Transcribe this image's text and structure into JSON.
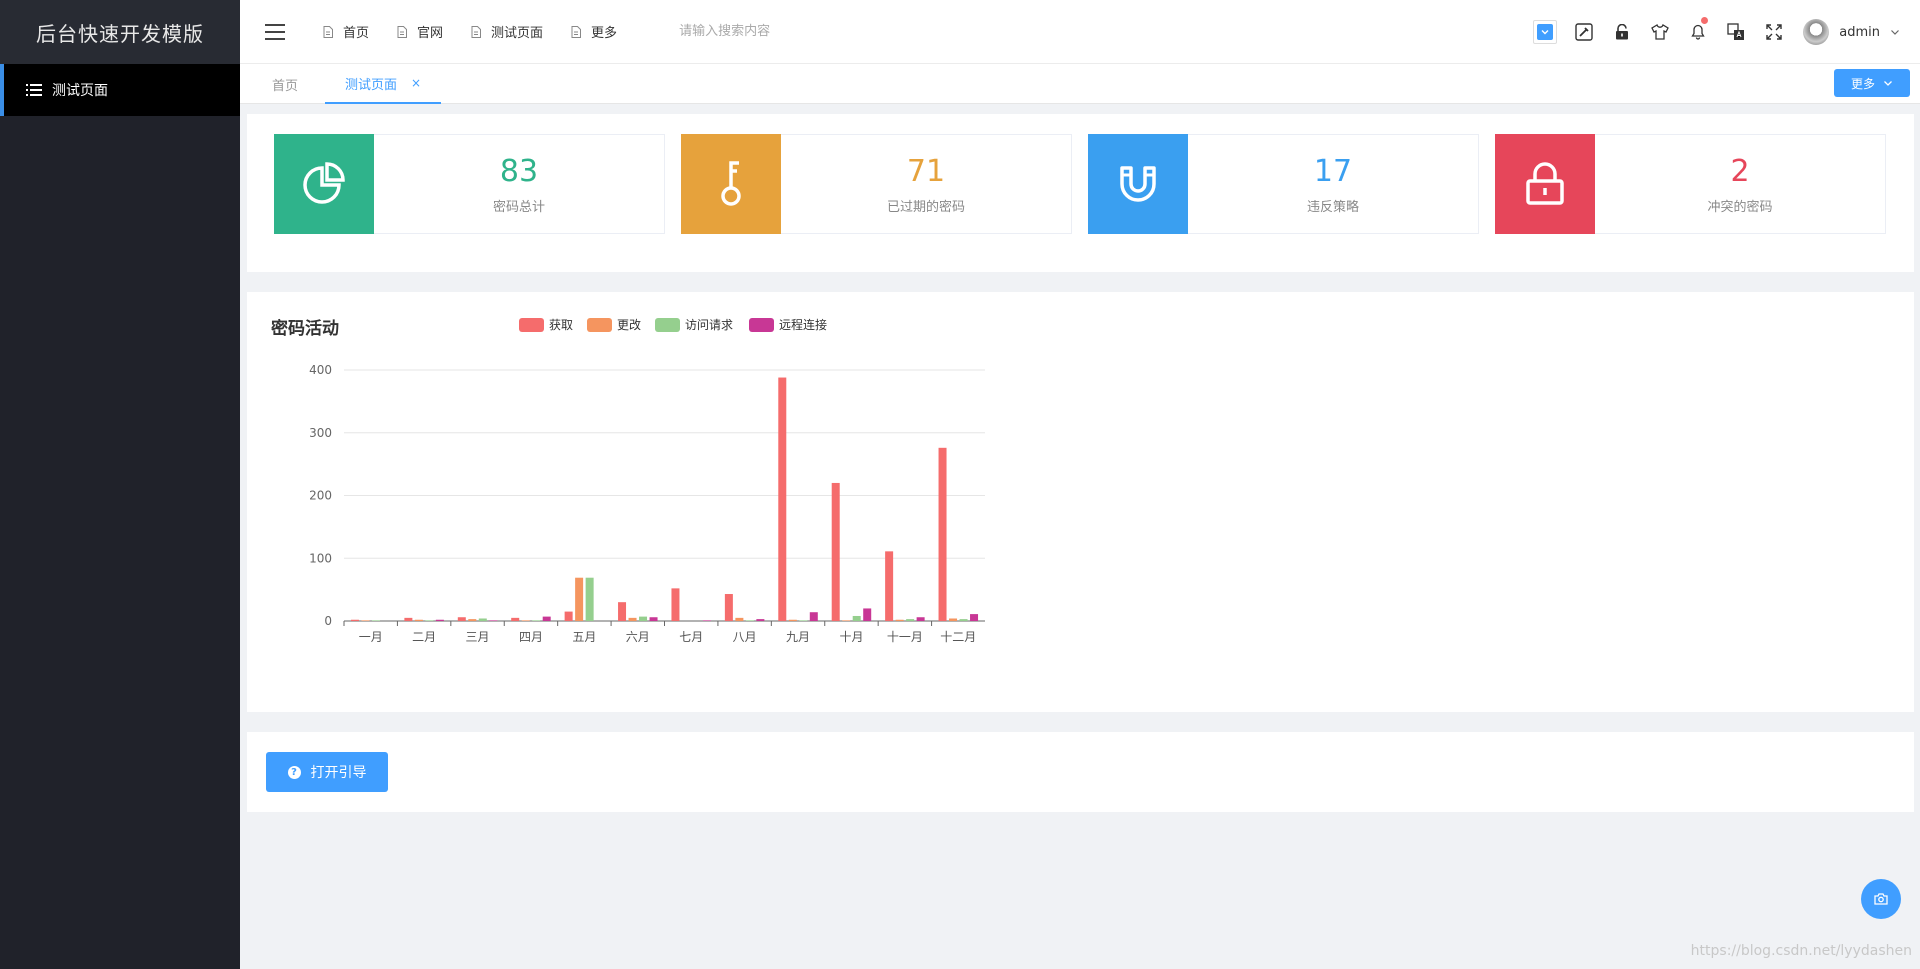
{
  "app": {
    "title": "后台快速开发模版"
  },
  "sidebar": {
    "items": [
      {
        "label": "测试页面",
        "icon": "list-icon"
      }
    ]
  },
  "header": {
    "nav": [
      {
        "label": "首页",
        "icon": "doc-icon"
      },
      {
        "label": "官网",
        "icon": "doc-icon"
      },
      {
        "label": "测试页面",
        "icon": "doc-icon"
      },
      {
        "label": "更多",
        "icon": "doc-icon"
      }
    ],
    "search_placeholder": "请输入搜索内容",
    "username": "admin"
  },
  "tabs": {
    "items": [
      {
        "label": "首页",
        "active": false
      },
      {
        "label": "测试页面",
        "active": true,
        "close": "×"
      }
    ],
    "more_label": "更多"
  },
  "stats": [
    {
      "value": "83",
      "label": "密码总计",
      "color": "#2fb38b",
      "icon": "pie-chart-icon"
    },
    {
      "value": "71",
      "label": "已过期的密码",
      "color": "#e6a23c",
      "icon": "key-icon"
    },
    {
      "value": "17",
      "label": "违反策略",
      "color": "#3a9ff0",
      "icon": "magnet-icon"
    },
    {
      "value": "2",
      "label": "冲突的密码",
      "color": "#e6465a",
      "icon": "lock-icon"
    }
  ],
  "chart_title": "密码活动",
  "chart_data": {
    "type": "bar",
    "categories": [
      "一月",
      "二月",
      "三月",
      "四月",
      "五月",
      "六月",
      "七月",
      "八月",
      "九月",
      "十月",
      "十一月",
      "十二月"
    ],
    "series": [
      {
        "name": "获取",
        "color": "#f56c6c",
        "values": [
          2,
          5,
          6,
          5,
          15,
          30,
          52,
          43,
          388,
          220,
          111,
          276
        ]
      },
      {
        "name": "更改",
        "color": "#f5955f",
        "values": [
          1,
          2,
          3,
          1,
          69,
          5,
          0,
          5,
          2,
          1,
          2,
          4
        ]
      },
      {
        "name": "访问请求",
        "color": "#95cf8e",
        "values": [
          1,
          1,
          4,
          1,
          69,
          7,
          0,
          1,
          1,
          8,
          3,
          3
        ]
      },
      {
        "name": "远程连接",
        "color": "#c83795",
        "values": [
          0,
          2,
          1,
          7,
          0,
          6,
          1,
          3,
          14,
          20,
          6,
          11
        ]
      }
    ],
    "yticks": [
      0,
      100,
      200,
      300,
      400
    ],
    "ylim": [
      0,
      400
    ],
    "legend_position": "top"
  },
  "guide": {
    "label": "打开引导",
    "icon": "question-icon"
  },
  "watermark": "https://blog.csdn.net/lyydashen"
}
